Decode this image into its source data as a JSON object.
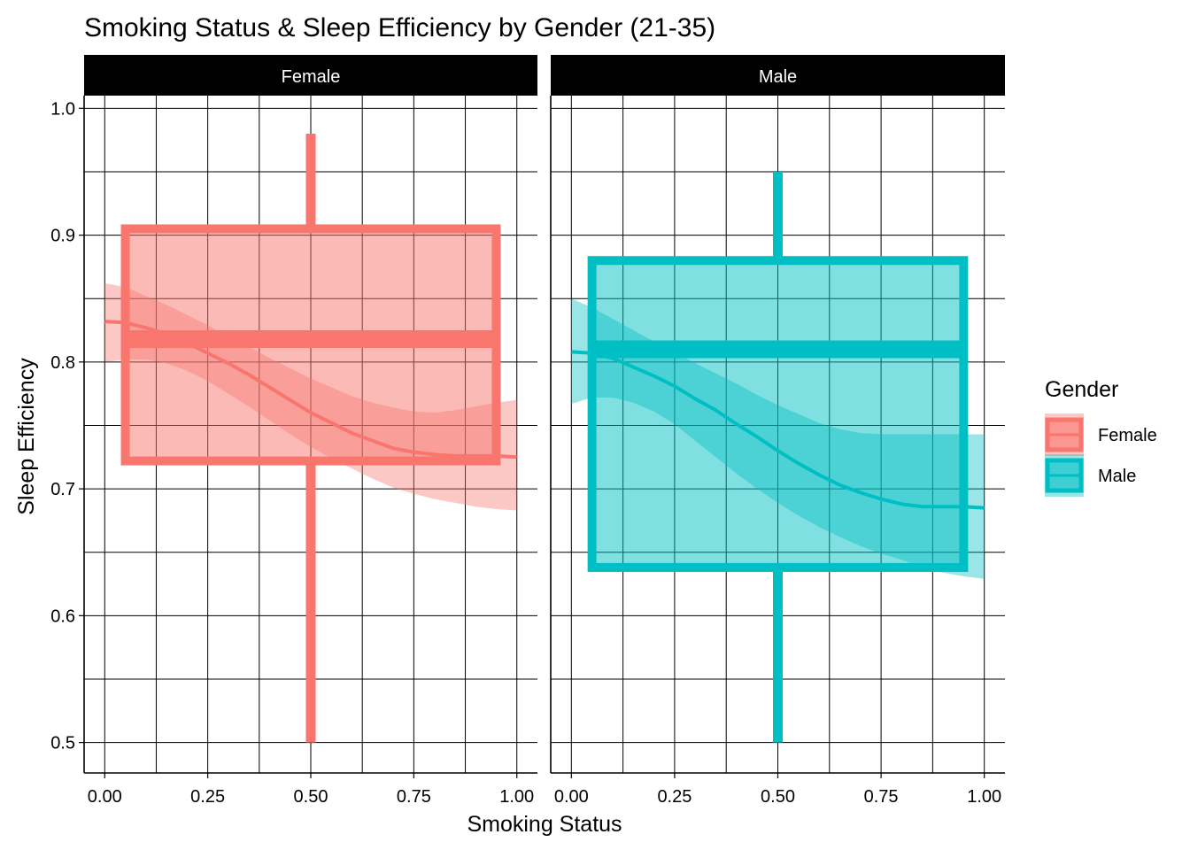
{
  "chart_data": {
    "type": "boxplot",
    "title": "Smoking Status & Sleep Efficiency by Gender (21-35)",
    "xlabel": "Smoking Status",
    "ylabel": "Sleep Efficiency",
    "xlim": [
      -0.05,
      1.05
    ],
    "ylim": [
      0.476,
      1.01
    ],
    "x_ticks": [
      "0.00",
      "0.25",
      "0.50",
      "0.75",
      "1.00"
    ],
    "x_tick_values": [
      0,
      0.25,
      0.5,
      0.75,
      1.0
    ],
    "y_ticks": [
      "0.5",
      "0.6",
      "0.7",
      "0.8",
      "0.9",
      "1.0"
    ],
    "y_tick_values": [
      0.5,
      0.6,
      0.7,
      0.8,
      0.9,
      1.0
    ],
    "grid": true,
    "legend": {
      "title": "Gender",
      "position": "right"
    },
    "panels": [
      {
        "name": "Female",
        "color": "#F8766D",
        "box": {
          "x_center": 0.5,
          "x_left": 0.05,
          "x_right": 0.95,
          "min": 0.5,
          "q1": 0.722,
          "median": 0.818,
          "q3": 0.905,
          "max": 0.98
        },
        "smooth": {
          "x": [
            0,
            0.05,
            0.1,
            0.15,
            0.2,
            0.25,
            0.3,
            0.35,
            0.4,
            0.45,
            0.5,
            0.55,
            0.6,
            0.65,
            0.7,
            0.75,
            0.8,
            0.85,
            0.9,
            0.95,
            1.0
          ],
          "y": [
            0.832,
            0.831,
            0.827,
            0.822,
            0.815,
            0.807,
            0.799,
            0.79,
            0.78,
            0.77,
            0.76,
            0.752,
            0.744,
            0.738,
            0.732,
            0.729,
            0.727,
            0.726,
            0.726,
            0.726,
            0.725
          ],
          "lower": [
            0.8,
            0.802,
            0.802,
            0.799,
            0.793,
            0.785,
            0.775,
            0.765,
            0.754,
            0.743,
            0.733,
            0.724,
            0.716,
            0.708,
            0.701,
            0.696,
            0.692,
            0.689,
            0.686,
            0.684,
            0.683
          ],
          "upper": [
            0.862,
            0.859,
            0.852,
            0.845,
            0.837,
            0.829,
            0.82,
            0.812,
            0.803,
            0.795,
            0.787,
            0.78,
            0.773,
            0.768,
            0.764,
            0.761,
            0.76,
            0.762,
            0.765,
            0.768,
            0.77
          ]
        }
      },
      {
        "name": "Male",
        "color": "#00BFC4",
        "box": {
          "x_center": 0.5,
          "x_left": 0.05,
          "x_right": 0.95,
          "min": 0.5,
          "q1": 0.638,
          "median": 0.81,
          "q3": 0.88,
          "max": 0.95
        },
        "smooth": {
          "x": [
            0,
            0.05,
            0.1,
            0.15,
            0.2,
            0.25,
            0.3,
            0.35,
            0.4,
            0.45,
            0.5,
            0.55,
            0.6,
            0.65,
            0.7,
            0.75,
            0.8,
            0.85,
            0.9,
            0.95,
            1.0
          ],
          "y": [
            0.808,
            0.807,
            0.803,
            0.796,
            0.789,
            0.781,
            0.771,
            0.762,
            0.751,
            0.741,
            0.73,
            0.72,
            0.711,
            0.703,
            0.697,
            0.692,
            0.688,
            0.686,
            0.686,
            0.686,
            0.685
          ],
          "lower": [
            0.767,
            0.772,
            0.772,
            0.768,
            0.761,
            0.751,
            0.738,
            0.725,
            0.712,
            0.7,
            0.689,
            0.679,
            0.67,
            0.662,
            0.655,
            0.649,
            0.644,
            0.638,
            0.634,
            0.631,
            0.629
          ],
          "upper": [
            0.85,
            0.843,
            0.834,
            0.825,
            0.816,
            0.808,
            0.799,
            0.791,
            0.783,
            0.774,
            0.766,
            0.759,
            0.752,
            0.747,
            0.744,
            0.743,
            0.743,
            0.743,
            0.743,
            0.743,
            0.743
          ]
        }
      }
    ]
  }
}
